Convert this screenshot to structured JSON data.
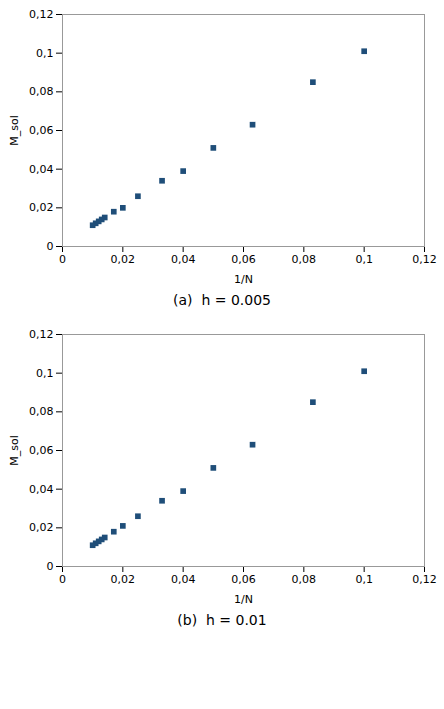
{
  "chart_data": [
    {
      "type": "scatter",
      "caption": "(a)  h = 0.005",
      "x_label": "1/N",
      "y_label": "M_sol",
      "x": [
        0.1,
        0.083,
        0.063,
        0.05,
        0.04,
        0.033,
        0.025,
        0.02,
        0.017,
        0.014,
        0.013,
        0.012,
        0.011,
        0.01
      ],
      "values": [
        0.101,
        0.085,
        0.063,
        0.051,
        0.039,
        0.034,
        0.026,
        0.02,
        0.018,
        0.015,
        0.014,
        0.013,
        0.012,
        0.011
      ],
      "color": "#1F4E79",
      "marker": "square",
      "grid": false,
      "xlim": [
        0,
        0.12
      ],
      "ylim": [
        0,
        0.12
      ],
      "xticks": [
        0,
        {
          "value": 0.02,
          "label": "0,02"
        },
        {
          "value": 0.04,
          "label": "0,04"
        },
        {
          "value": 0.06,
          "label": "0,06"
        },
        {
          "value": 0.08,
          "label": "0,08"
        },
        {
          "value": 0.1,
          "label": "0,1"
        },
        {
          "value": 0.12,
          "label": "0,12"
        }
      ],
      "yticks": [
        0,
        {
          "value": 0.02,
          "label": "0,02"
        },
        {
          "value": 0.04,
          "label": "0,04"
        },
        {
          "value": 0.06,
          "label": "0,06"
        },
        {
          "value": 0.08,
          "label": "0,08"
        },
        {
          "value": 0.1,
          "label": "0,1"
        },
        {
          "value": 0.12,
          "label": "0,12"
        }
      ]
    },
    {
      "type": "scatter",
      "caption": "(b)  h = 0.01",
      "x_label": "1/N",
      "y_label": "M_sol",
      "x": [
        0.1,
        0.083,
        0.063,
        0.05,
        0.04,
        0.033,
        0.025,
        0.02,
        0.017,
        0.014,
        0.013,
        0.012,
        0.011,
        0.01
      ],
      "values": [
        0.101,
        0.085,
        0.063,
        0.051,
        0.039,
        0.034,
        0.026,
        0.021,
        0.018,
        0.015,
        0.014,
        0.013,
        0.012,
        0.011
      ],
      "color": "#1F4E79",
      "marker": "square",
      "grid": false,
      "xlim": [
        0,
        0.12
      ],
      "ylim": [
        0,
        0.12
      ],
      "xticks": [
        0,
        {
          "value": 0.02,
          "label": "0,02"
        },
        {
          "value": 0.04,
          "label": "0,04"
        },
        {
          "value": 0.06,
          "label": "0,06"
        },
        {
          "value": 0.08,
          "label": "0,08"
        },
        {
          "value": 0.1,
          "label": "0,1"
        },
        {
          "value": 0.12,
          "label": "0,12"
        }
      ],
      "yticks": [
        0,
        {
          "value": 0.02,
          "label": "0,02"
        },
        {
          "value": 0.04,
          "label": "0,04"
        },
        {
          "value": 0.06,
          "label": "0,06"
        },
        {
          "value": 0.08,
          "label": "0,08"
        },
        {
          "value": 0.1,
          "label": "0,1"
        },
        {
          "value": 0.12,
          "label": "0,12"
        }
      ]
    }
  ]
}
